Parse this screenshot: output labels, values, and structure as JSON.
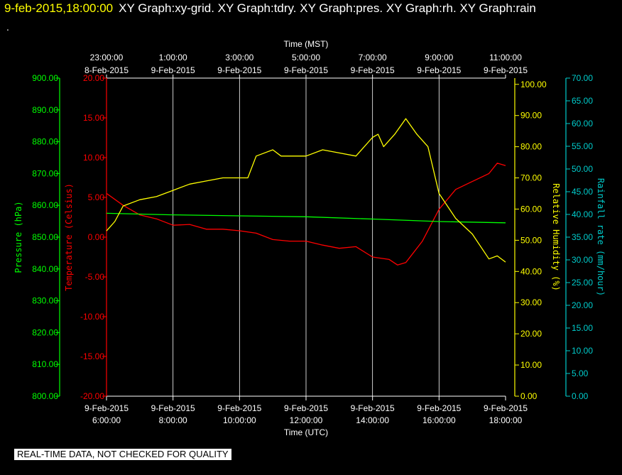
{
  "header": {
    "datetime": "9-feb-2015,18:00:00",
    "titles": "XY Graph:xy-grid.  XY Graph:tdry.  XY Graph:pres.  XY Graph:rh.  XY Graph:rain",
    "dot": "."
  },
  "footer": {
    "banner": "REAL-TIME DATA, NOT CHECKED FOR QUALITY"
  },
  "chart_data": {
    "type": "line",
    "colors": {
      "pressure": "#00ff00",
      "temperature": "#ff0000",
      "humidity": "#ffff00",
      "rainfall": "#00cccc",
      "grid": "#ffffff"
    },
    "x_bottom": {
      "label": "Time (UTC)",
      "range": [
        "2015-02-09 06:00",
        "2015-02-09 18:00"
      ],
      "ticks": [
        {
          "date": "9-Feb-2015",
          "time": "6:00:00"
        },
        {
          "date": "9-Feb-2015",
          "time": "8:00:00"
        },
        {
          "date": "9-Feb-2015",
          "time": "10:00:00"
        },
        {
          "date": "9-Feb-2015",
          "time": "12:00:00"
        },
        {
          "date": "9-Feb-2015",
          "time": "14:00:00"
        },
        {
          "date": "9-Feb-2015",
          "time": "16:00:00"
        },
        {
          "date": "9-Feb-2015",
          "time": "18:00:00"
        }
      ]
    },
    "x_top": {
      "label": "Time (MST)",
      "ticks": [
        {
          "date": "8-Feb-2015",
          "time": "23:00:00"
        },
        {
          "date": "9-Feb-2015",
          "time": "1:00:00"
        },
        {
          "date": "9-Feb-2015",
          "time": "3:00:00"
        },
        {
          "date": "9-Feb-2015",
          "time": "5:00:00"
        },
        {
          "date": "9-Feb-2015",
          "time": "7:00:00"
        },
        {
          "date": "9-Feb-2015",
          "time": "9:00:00"
        },
        {
          "date": "9-Feb-2015",
          "time": "11:00:00"
        }
      ]
    },
    "axes": {
      "pressure": {
        "label": "Pressure (hPa)",
        "range": [
          800,
          900
        ],
        "ticks": [
          "800.00",
          "810.00",
          "820.00",
          "830.00",
          "840.00",
          "850.00",
          "860.00",
          "870.00",
          "880.00",
          "890.00",
          "900.00"
        ]
      },
      "temperature": {
        "label": "Temperature (Celsius)",
        "range": [
          -20,
          20
        ],
        "ticks": [
          "-20.00",
          "-15.00",
          "-10.00",
          "-5.00",
          "0.00",
          "5.00",
          "10.00",
          "15.00",
          "20.00"
        ]
      },
      "humidity": {
        "label": "Relative Humidity (%)",
        "range": [
          0,
          102
        ],
        "ticks": [
          "0.00",
          "10.00",
          "20.00",
          "30.00",
          "40.00",
          "50.00",
          "60.00",
          "70.00",
          "80.00",
          "90.00",
          "100.00"
        ]
      },
      "rainfall": {
        "label": "Rainfall rate (mm/hour)",
        "range": [
          0,
          70
        ],
        "ticks": [
          "0.00",
          "5.00",
          "10.00",
          "15.00",
          "20.00",
          "25.00",
          "30.00",
          "35.00",
          "40.00",
          "45.00",
          "50.00",
          "55.00",
          "60.00",
          "65.00",
          "70.00"
        ]
      }
    },
    "grid": true,
    "series": [
      {
        "name": "Temperature (Celsius)",
        "axis": "temperature",
        "x": [
          "06:00",
          "06:30",
          "07:00",
          "07:30",
          "08:00",
          "08:30",
          "09:00",
          "09:30",
          "10:00",
          "10:30",
          "11:00",
          "11:30",
          "12:00",
          "12:30",
          "13:00",
          "13:30",
          "14:00",
          "14:30",
          "14:45",
          "15:00",
          "15:30",
          "16:00",
          "16:30",
          "17:00",
          "17:30",
          "17:45",
          "18:00"
        ],
        "y": [
          5.5,
          4.0,
          2.8,
          2.3,
          1.5,
          1.6,
          1.0,
          1.0,
          0.8,
          0.5,
          -0.3,
          -0.5,
          -0.5,
          -1.0,
          -1.4,
          -1.2,
          -2.5,
          -2.8,
          -3.5,
          -3.2,
          -0.5,
          3.5,
          6.0,
          7.0,
          8.0,
          9.3,
          9.0
        ]
      },
      {
        "name": "Pressure (hPa)",
        "axis": "pressure",
        "x": [
          "06:00",
          "08:00",
          "10:00",
          "12:00",
          "14:00",
          "16:00",
          "18:00"
        ],
        "y": [
          857.5,
          857.0,
          856.7,
          856.4,
          855.7,
          854.9,
          854.5
        ]
      },
      {
        "name": "Relative Humidity (%)",
        "axis": "humidity",
        "x": [
          "06:00",
          "06:15",
          "06:30",
          "07:00",
          "07:30",
          "08:00",
          "08:30",
          "09:00",
          "09:30",
          "10:00",
          "10:15",
          "10:30",
          "11:00",
          "11:15",
          "11:30",
          "12:00",
          "12:30",
          "13:00",
          "13:30",
          "14:00",
          "14:10",
          "14:20",
          "14:40",
          "15:00",
          "15:20",
          "15:40",
          "16:00",
          "16:30",
          "17:00",
          "17:30",
          "17:45",
          "18:00"
        ],
        "y": [
          53,
          56,
          61,
          63,
          64,
          66,
          68,
          69,
          70,
          70,
          70,
          77,
          79,
          77,
          77,
          77,
          79,
          78,
          77,
          83,
          84,
          80,
          84,
          89,
          84,
          80,
          65,
          57,
          52,
          44,
          45,
          43
        ]
      }
    ]
  }
}
